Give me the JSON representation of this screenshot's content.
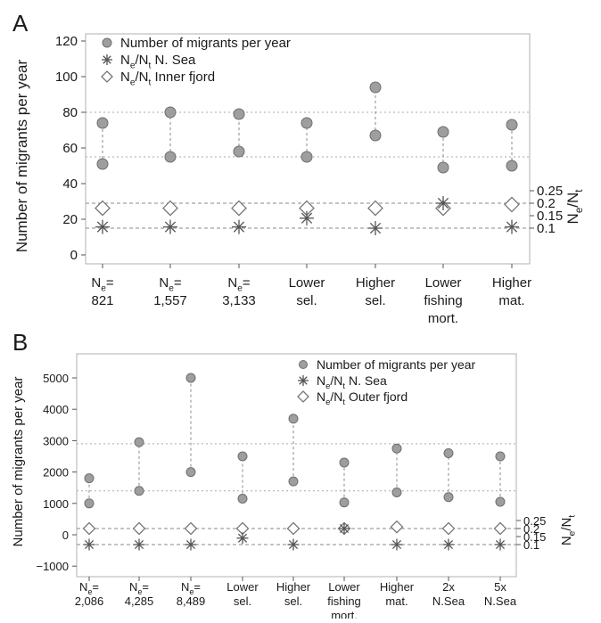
{
  "chart_data": [
    {
      "panel": "A",
      "type": "scatter",
      "ylabel": "Number of migrants per year",
      "y2label_parts": [
        "N",
        "e",
        "/N",
        "t"
      ],
      "yticks": [
        "0",
        "20",
        "40",
        "60",
        "80",
        "100",
        "120"
      ],
      "ylim": [
        0,
        120
      ],
      "y2ticks": [
        "0.25",
        "0.2",
        "0.15",
        "0.1"
      ],
      "y2_values": [
        0.25,
        0.2,
        0.15,
        0.1
      ],
      "y2_ylim": [
        0,
        0.5
      ],
      "hlines_migrants": [
        55,
        80
      ],
      "hlines_ratio": [
        0.2,
        0.1
      ],
      "categories": [
        {
          "lines": [
            [
              "N",
              "e",
              "="
            ],
            [
              "821"
            ]
          ]
        },
        {
          "lines": [
            [
              "N",
              "e",
              "="
            ],
            [
              "1,557"
            ]
          ]
        },
        {
          "lines": [
            [
              "N",
              "e",
              "="
            ],
            [
              "3,133"
            ]
          ]
        },
        {
          "lines": [
            [
              "Lower"
            ],
            [
              "sel."
            ]
          ]
        },
        {
          "lines": [
            [
              "Higher"
            ],
            [
              "sel."
            ]
          ]
        },
        {
          "lines": [
            [
              "Lower"
            ],
            [
              "fishing"
            ],
            [
              "mort."
            ]
          ]
        },
        {
          "lines": [
            [
              "Higher"
            ],
            [
              "mat."
            ]
          ]
        }
      ],
      "legend": [
        {
          "symbol": "circle",
          "parts": [
            "Number of migrants per year"
          ]
        },
        {
          "symbol": "star",
          "parts": [
            "N",
            "e",
            "/N",
            "t",
            " N. Sea"
          ]
        },
        {
          "symbol": "diamond",
          "parts": [
            "N",
            "e",
            "/N",
            "t",
            " Inner fjord"
          ]
        }
      ],
      "series": [
        {
          "symbol": "circle",
          "low": [
            51,
            55,
            58,
            55,
            67,
            49,
            50
          ],
          "high": [
            74,
            80,
            79,
            74,
            94,
            69,
            73
          ]
        },
        {
          "symbol": "star",
          "values": [
            0.105,
            0.105,
            0.105,
            0.14,
            0.1,
            0.2,
            0.105
          ]
        },
        {
          "symbol": "diamond",
          "values": [
            0.18,
            0.18,
            0.18,
            0.18,
            0.18,
            0.18,
            0.195
          ]
        }
      ]
    },
    {
      "panel": "B",
      "type": "scatter",
      "ylabel": "Number of migrants per year",
      "y2label_parts": [
        "N",
        "e",
        "/N",
        "t"
      ],
      "yticks": [
        "−1000",
        "0",
        "1000",
        "2000",
        "3000",
        "4000",
        "5000"
      ],
      "ylim": [
        -1000,
        5000
      ],
      "y2ticks": [
        "0.25",
        "0.2",
        "0.15",
        "0.1"
      ],
      "y2_values": [
        0.25,
        0.2,
        0.15,
        0.1
      ],
      "hlines_migrants": [
        1400,
        2900
      ],
      "hlines_ratio": [
        0.2,
        0.1
      ],
      "categories": [
        {
          "lines": [
            [
              "N",
              "e",
              "="
            ],
            [
              "2,086"
            ]
          ]
        },
        {
          "lines": [
            [
              "N",
              "e",
              "="
            ],
            [
              "4,285"
            ]
          ]
        },
        {
          "lines": [
            [
              "N",
              "e",
              "="
            ],
            [
              "8,489"
            ]
          ]
        },
        {
          "lines": [
            [
              "Lower"
            ],
            [
              "sel."
            ]
          ]
        },
        {
          "lines": [
            [
              "Higher"
            ],
            [
              "sel."
            ]
          ]
        },
        {
          "lines": [
            [
              "Lower"
            ],
            [
              "fishing"
            ],
            [
              "mort."
            ]
          ]
        },
        {
          "lines": [
            [
              "Higher"
            ],
            [
              "mat."
            ]
          ]
        },
        {
          "lines": [
            [
              "2x"
            ],
            [
              "N.Sea"
            ]
          ]
        },
        {
          "lines": [
            [
              "5x"
            ],
            [
              "N.Sea"
            ]
          ]
        }
      ],
      "legend": [
        {
          "symbol": "circle",
          "parts": [
            "Number of migrants per year"
          ]
        },
        {
          "symbol": "star",
          "parts": [
            "N",
            "e",
            "/N",
            "t",
            " N. Sea"
          ]
        },
        {
          "symbol": "diamond",
          "parts": [
            "N",
            "e",
            "/N",
            "t",
            " Outer fjord"
          ]
        }
      ],
      "series": [
        {
          "symbol": "circle",
          "low": [
            1000,
            1400,
            2000,
            1150,
            1700,
            1030,
            1350,
            1200,
            1050
          ],
          "high": [
            1800,
            2950,
            5000,
            2500,
            3700,
            2300,
            2750,
            2600,
            2500
          ]
        },
        {
          "symbol": "star",
          "values": [
            0.1,
            0.1,
            0.1,
            0.14,
            0.1,
            0.2,
            0.1,
            0.1,
            0.1
          ]
        },
        {
          "symbol": "diamond",
          "values": [
            0.2,
            0.2,
            0.2,
            0.2,
            0.2,
            0.2,
            0.21,
            0.2,
            0.2
          ]
        }
      ]
    }
  ]
}
